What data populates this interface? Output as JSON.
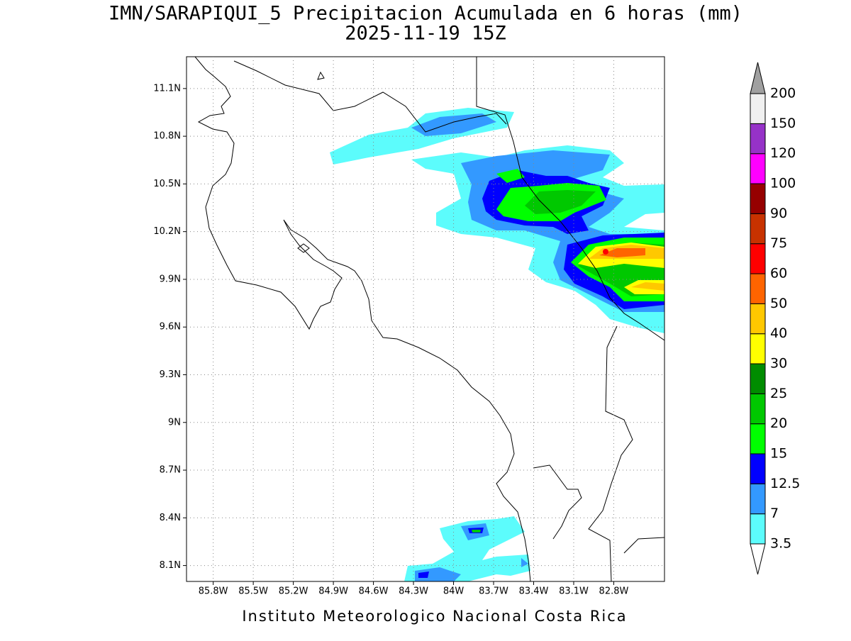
{
  "title": "IMN/SARAPIQUI_5 Precipitacion Acumulada en 6 horas (mm)",
  "subtitle": "2025-11-19 15Z",
  "map": {
    "xlim": [
      -86.0,
      -82.42
    ],
    "ylim": [
      8.0,
      11.3
    ],
    "xticks": [
      {
        "value": -85.8,
        "label": "85.8W"
      },
      {
        "value": -85.5,
        "label": "85.5W"
      },
      {
        "value": -85.2,
        "label": "85.2W"
      },
      {
        "value": -84.9,
        "label": "84.9W"
      },
      {
        "value": -84.6,
        "label": "84.6W"
      },
      {
        "value": -84.3,
        "label": "84.3W"
      },
      {
        "value": -84.0,
        "label": "84W"
      },
      {
        "value": -83.7,
        "label": "83.7W"
      },
      {
        "value": -83.4,
        "label": "83.4W"
      },
      {
        "value": -83.1,
        "label": "83.1W"
      },
      {
        "value": -82.8,
        "label": "82.8W"
      }
    ],
    "yticks": [
      {
        "value": 8.1,
        "label": "8.1N"
      },
      {
        "value": 8.4,
        "label": "8.4N"
      },
      {
        "value": 8.7,
        "label": "8.7N"
      },
      {
        "value": 9.0,
        "label": "9N"
      },
      {
        "value": 9.3,
        "label": "9.3N"
      },
      {
        "value": 9.6,
        "label": "9.6N"
      },
      {
        "value": 9.9,
        "label": "9.9N"
      },
      {
        "value": 10.2,
        "label": "10.2N"
      },
      {
        "value": 10.5,
        "label": "10.5N"
      },
      {
        "value": 10.8,
        "label": "10.8N"
      },
      {
        "value": 11.1,
        "label": "11.1N"
      }
    ],
    "grid": true
  },
  "colorbar": {
    "levels": [
      3.5,
      7,
      12.5,
      15,
      20,
      25,
      30,
      40,
      50,
      60,
      75,
      90,
      100,
      120,
      150,
      200
    ],
    "colors": [
      "#5cfcfc",
      "#3399ff",
      "#0000ff",
      "#00ff00",
      "#00c800",
      "#008c00",
      "#ffff00",
      "#ffc800",
      "#ff6400",
      "#ff0000",
      "#c83200",
      "#960000",
      "#ff00ff",
      "#9632c8",
      "#f0f0f0"
    ],
    "under_color": "#ffffff",
    "over_color": "#a0a0a0"
  },
  "footer": "Instituto Meteorologico Nacional Costa Rica"
}
